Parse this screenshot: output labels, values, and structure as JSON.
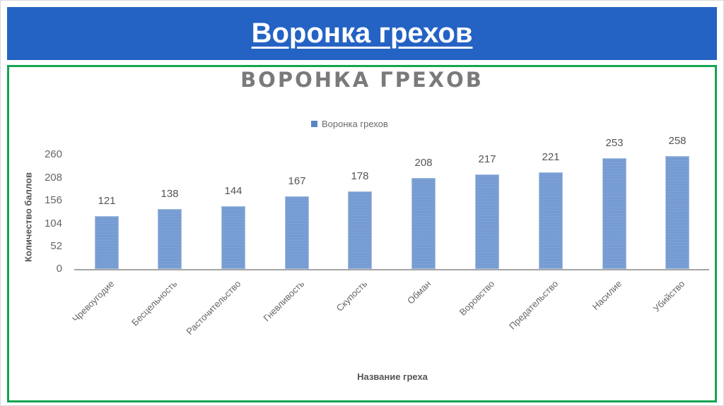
{
  "slide": {
    "title": "Воронка грехов"
  },
  "colors": {
    "banner": "#2463c4",
    "frame": "#12a552",
    "bar": "#6b93cf"
  },
  "chart_data": {
    "type": "bar",
    "title": "ВОРОНКА ГРЕХОВ",
    "legend": [
      "Воронка грехов"
    ],
    "legend_position": "top",
    "xlabel": "Название греха",
    "ylabel": "Количество баллов",
    "ylim": [
      0,
      260
    ],
    "yticks": [
      "260",
      "208",
      "156",
      "104",
      "52",
      "0"
    ],
    "grid": false,
    "categories": [
      "Чревоугодие",
      "Бесцельность",
      "Расточительство",
      "Гневливость",
      "Скупость",
      "Обман",
      "Воровство",
      "Предательство",
      "Насилие",
      "Убийство"
    ],
    "series": [
      {
        "name": "Воронка грехов",
        "values": [
          121,
          138,
          144,
          167,
          178,
          208,
          217,
          221,
          253,
          258
        ]
      }
    ],
    "data_labels": [
      "121",
      "138",
      "144",
      "167",
      "178",
      "208",
      "217",
      "221",
      "253",
      "258"
    ]
  }
}
